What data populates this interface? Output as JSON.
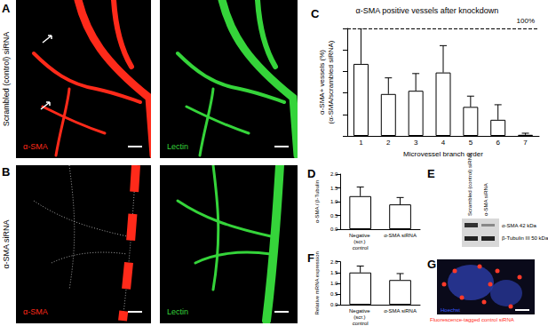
{
  "panels": {
    "A": {
      "label": "A",
      "row_label": "Scrambled (control) siRNA",
      "stains": [
        {
          "text": "α-SMA",
          "color": "#ff2a1a"
        },
        {
          "text": "Lectin",
          "color": "#35d43a"
        }
      ]
    },
    "B": {
      "label": "B",
      "row_label": "α-SMA siRNA",
      "stains": [
        {
          "text": "α-SMA",
          "color": "#ff2a1a"
        },
        {
          "text": "Lectin",
          "color": "#35d43a"
        }
      ]
    },
    "E": {
      "label": "E",
      "lanes": [
        "Scrambled (control) siRNA",
        "α-SMA siRNA"
      ],
      "bands": [
        "α-SMA 42 kDa",
        "β-Tubulin III 50 kDa"
      ]
    },
    "G": {
      "label": "G",
      "stains": [
        {
          "text": "Hoechst",
          "color": "#3a5cff"
        },
        {
          "text": "Fluorescence-tagged control siRNA",
          "color": "#ff2a1a"
        }
      ]
    }
  },
  "chart_data": [
    {
      "panel": "C",
      "type": "bar",
      "title": "α-SMA positive vessels after knockdown",
      "xlabel": "Microvessel branch order",
      "ylabel": [
        "α-SMA+ vessels (%)",
        "(α-SMA/scrambled siRNA)"
      ],
      "categories": [
        "1",
        "2",
        "3",
        "4",
        "5",
        "6",
        "7"
      ],
      "values": [
        67,
        39,
        42,
        59,
        27,
        15,
        1
      ],
      "errors": [
        33,
        15,
        16,
        25,
        10,
        14,
        1.5
      ],
      "color": "#ffffff",
      "ylim": [
        0,
        100
      ],
      "yticks": [
        0,
        20,
        40,
        60,
        80,
        100
      ],
      "tick_labels": "x",
      "annotations": [
        {
          "y": 100,
          "text": "100%"
        }
      ]
    },
    {
      "panel": "D",
      "type": "bar",
      "ylabel": "α-SMA / β-Tubulin",
      "categories": [
        "Negative (scr.) control",
        "α-SMA siRNA"
      ],
      "values": [
        1.2,
        0.9
      ],
      "errors": [
        0.33,
        0.25
      ],
      "color": "#ffffff",
      "ylim": [
        0,
        2
      ],
      "yticks": [
        {
          "value": 0,
          "label": "0.0"
        },
        0.5,
        {
          "value": 1,
          "label": "1.0"
        },
        1.5,
        {
          "value": 2,
          "label": "2.0"
        }
      ]
    },
    {
      "panel": "F",
      "type": "bar",
      "ylabel": "Relative mRNA expression",
      "categories": [
        "Negative (scr.) control",
        "α-SMA siRNA"
      ],
      "values": [
        1.5,
        1.15
      ],
      "errors": [
        0.3,
        0.3
      ],
      "color": "#ffffff",
      "ylim": [
        0,
        2
      ],
      "yticks": [
        {
          "value": 0,
          "label": "0.0"
        },
        0.5,
        {
          "value": 1,
          "label": "1.0"
        },
        1.5,
        {
          "value": 2,
          "label": "2.0"
        }
      ]
    }
  ]
}
